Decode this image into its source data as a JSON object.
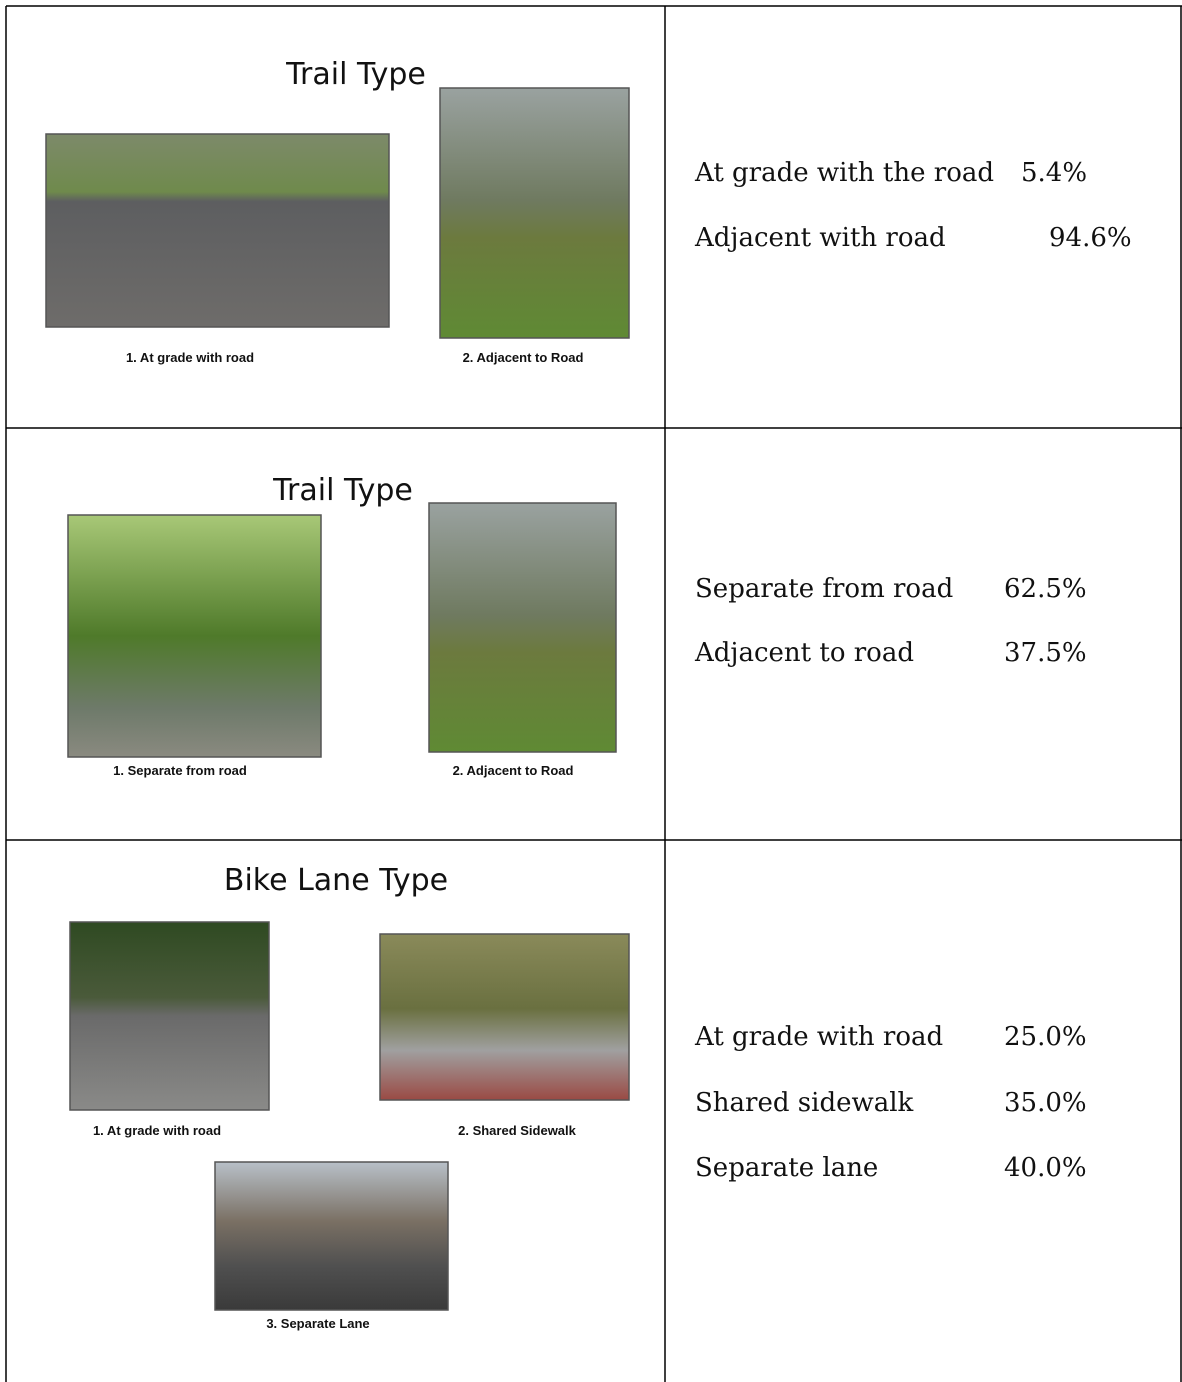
{
  "table": {
    "rows": [
      {
        "title": "Trail Type",
        "images": [
          {
            "caption": "1. At grade with road"
          },
          {
            "caption": "2. Adjacent to Road"
          }
        ],
        "stats": [
          {
            "label": "At grade with the road",
            "value": "5.4%"
          },
          {
            "label": "Adjacent with road",
            "value": "94.6%"
          }
        ]
      },
      {
        "title": "Trail Type",
        "images": [
          {
            "caption": "1. Separate from road"
          },
          {
            "caption": "2. Adjacent to Road"
          }
        ],
        "stats": [
          {
            "label": "Separate from road",
            "value": "62.5%"
          },
          {
            "label": "Adjacent to road",
            "value": "37.5%"
          }
        ]
      },
      {
        "title": "Bike Lane Type",
        "images": [
          {
            "caption": "1. At grade with road"
          },
          {
            "caption": "2. Shared Sidewalk"
          },
          {
            "caption": "3. Separate Lane"
          }
        ],
        "stats": [
          {
            "label": "At grade with road",
            "value": "25.0%"
          },
          {
            "label": "Shared sidewalk",
            "value": "35.0%"
          },
          {
            "label": "Separate lane",
            "value": "40.0%"
          }
        ]
      }
    ]
  }
}
